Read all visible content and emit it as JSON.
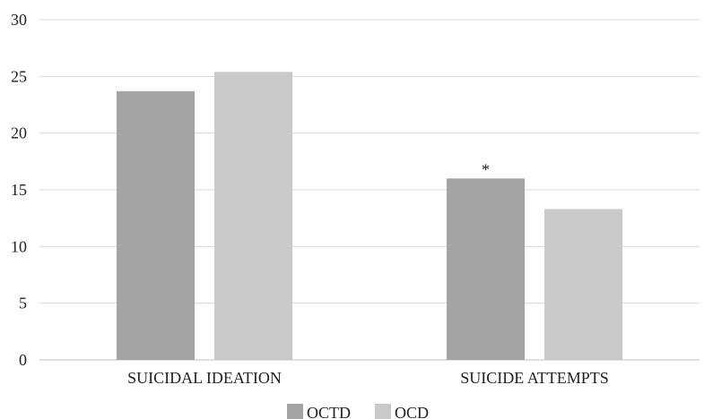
{
  "chart_data": {
    "type": "bar",
    "categories": [
      "SUICIDAL IDEATION",
      "SUICIDE ATTEMPTS"
    ],
    "series": [
      {
        "name": "OCTD",
        "values": [
          23.7,
          16.0
        ],
        "color": "#a2a4a6"
      },
      {
        "name": "OCD",
        "values": [
          25.4,
          13.3
        ],
        "color": "#c8c9cb"
      }
    ],
    "ylim": [
      0,
      30
    ],
    "yticks": [
      "0",
      "5",
      "10",
      "15",
      "20",
      "25",
      "30"
    ],
    "grid": true,
    "legend_position": "bottom",
    "annotations": [
      {
        "series": "OCTD",
        "category": "SUICIDE ATTEMPTS",
        "text": "*"
      }
    ],
    "title": "",
    "xlabel": "",
    "ylabel": ""
  }
}
